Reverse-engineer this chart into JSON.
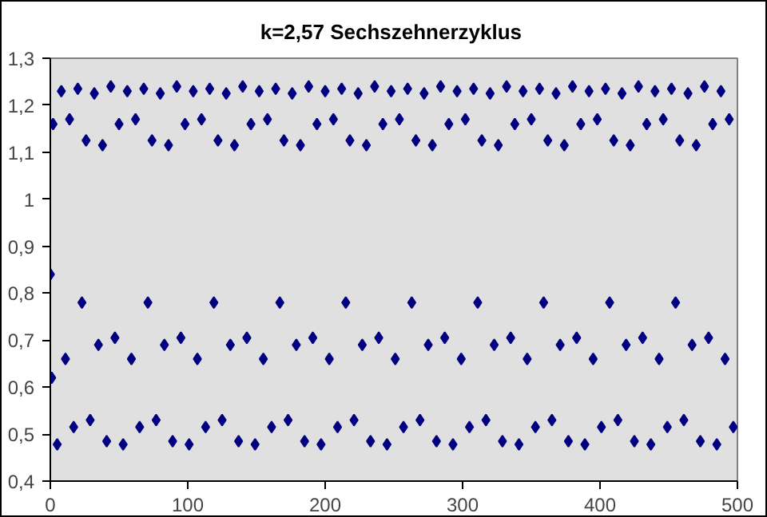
{
  "chart_data": {
    "type": "scatter",
    "title": "k=2,57  Sechszehnerzyklus",
    "marker": "diamond",
    "grid": false,
    "xlim": [
      0,
      500
    ],
    "xticks": [
      0,
      100,
      200,
      300,
      400,
      500
    ],
    "ylim": [
      0.4,
      1.3
    ],
    "yticks": [
      {
        "value": 0.4,
        "label": "0,4"
      },
      {
        "value": 0.5,
        "label": "0,5"
      },
      {
        "value": 0.6,
        "label": "0,6"
      },
      {
        "value": 0.7,
        "label": "0,7"
      },
      {
        "value": 0.8,
        "label": "0,8"
      },
      {
        "value": 0.9,
        "label": "0,9"
      },
      1,
      {
        "value": 1.1,
        "label": "1,1"
      },
      {
        "value": 1.2,
        "label": "1,2"
      },
      {
        "value": 1.3,
        "label": "1,3"
      }
    ],
    "series": [
      {
        "color": "#000080",
        "x": [
          0,
          1,
          2,
          5,
          8,
          11,
          14,
          17,
          20,
          23,
          26,
          29,
          32,
          35,
          38,
          41,
          44,
          47,
          50,
          53,
          56,
          59,
          62,
          65,
          68,
          71,
          74,
          77,
          80,
          83,
          86,
          89,
          92,
          95,
          98,
          101,
          104,
          107,
          110,
          113,
          116,
          119,
          122,
          125,
          128,
          131,
          134,
          137,
          140,
          143,
          146,
          149,
          152,
          155,
          158,
          161,
          164,
          167,
          170,
          173,
          176,
          179,
          182,
          185,
          188,
          191,
          194,
          197,
          200,
          203,
          206,
          209,
          212,
          215,
          218,
          221,
          224,
          227,
          230,
          233,
          236,
          239,
          242,
          245,
          248,
          251,
          254,
          257,
          260,
          263,
          266,
          269,
          272,
          275,
          278,
          281,
          284,
          287,
          290,
          293,
          296,
          299,
          302,
          305,
          308,
          311,
          314,
          317,
          320,
          323,
          326,
          329,
          332,
          335,
          338,
          341,
          344,
          347,
          350,
          353,
          356,
          359,
          362,
          365,
          368,
          371,
          374,
          377,
          380,
          383,
          386,
          389,
          392,
          395,
          398,
          401,
          404,
          407,
          410,
          413,
          416,
          419,
          422,
          425,
          428,
          431,
          434,
          437,
          440,
          443,
          446,
          449,
          452,
          455,
          458,
          461,
          464,
          467,
          470,
          473,
          476,
          479,
          482,
          485,
          488,
          491,
          494,
          497
        ],
        "values": [
          0.84,
          0.62,
          1.16,
          0.478,
          1.23,
          0.66,
          1.17,
          0.515,
          1.235,
          0.78,
          1.125,
          0.53,
          1.225,
          0.69,
          1.115,
          0.485,
          1.24,
          0.705,
          1.16,
          0.478,
          1.23,
          0.66,
          1.17,
          0.515,
          1.235,
          0.78,
          1.125,
          0.53,
          1.225,
          0.69,
          1.115,
          0.485,
          1.24,
          0.705,
          1.16,
          0.478,
          1.23,
          0.66,
          1.17,
          0.515,
          1.235,
          0.78,
          1.125,
          0.53,
          1.225,
          0.69,
          1.115,
          0.485,
          1.24,
          0.705,
          1.16,
          0.478,
          1.23,
          0.66,
          1.17,
          0.515,
          1.235,
          0.78,
          1.125,
          0.53,
          1.225,
          0.69,
          1.115,
          0.485,
          1.24,
          0.705,
          1.16,
          0.478,
          1.23,
          0.66,
          1.17,
          0.515,
          1.235,
          0.78,
          1.125,
          0.53,
          1.225,
          0.69,
          1.115,
          0.485,
          1.24,
          0.705,
          1.16,
          0.478,
          1.23,
          0.66,
          1.17,
          0.515,
          1.235,
          0.78,
          1.125,
          0.53,
          1.225,
          0.69,
          1.115,
          0.485,
          1.24,
          0.705,
          1.16,
          0.478,
          1.23,
          0.66,
          1.17,
          0.515,
          1.235,
          0.78,
          1.125,
          0.53,
          1.225,
          0.69,
          1.115,
          0.485,
          1.24,
          0.705,
          1.16,
          0.478,
          1.23,
          0.66,
          1.17,
          0.515,
          1.235,
          0.78,
          1.125,
          0.53,
          1.225,
          0.69,
          1.115,
          0.485,
          1.24,
          0.705,
          1.16,
          0.478,
          1.23,
          0.66,
          1.17,
          0.515,
          1.235,
          0.78,
          1.125,
          0.53,
          1.225,
          0.69,
          1.115,
          0.485,
          1.24,
          0.705,
          1.16,
          0.478,
          1.23,
          0.66,
          1.17,
          0.515,
          1.235,
          0.78,
          1.125,
          0.53,
          1.225,
          0.69,
          1.115,
          0.485,
          1.24,
          0.705,
          1.16,
          0.478,
          1.23,
          0.66,
          1.17,
          0.515
        ]
      }
    ]
  }
}
